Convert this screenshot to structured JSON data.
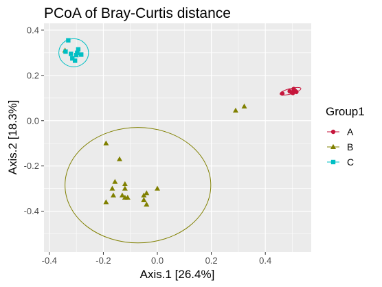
{
  "chart_data": {
    "type": "scatter",
    "title": "PCoA of Bray-Curtis distance",
    "xlabel": "Axis.1   [26.4%]",
    "ylabel": "Axis.2   [18.3%]",
    "xlim": [
      -0.42,
      0.57
    ],
    "ylim": [
      -0.58,
      0.43
    ],
    "x_ticks": [
      -0.4,
      -0.2,
      0.0,
      0.2,
      0.4
    ],
    "x_tick_labels": [
      "-0.4",
      "-0.2",
      "0.0",
      "0.2",
      "0.4"
    ],
    "y_ticks": [
      0.4,
      0.2,
      0.0,
      -0.2,
      -0.4
    ],
    "y_tick_labels": [
      "0.4",
      "0.2",
      "0.0",
      "-0.2",
      "-0.4"
    ],
    "grid": true,
    "legend": {
      "title": "Group1",
      "position": "right"
    },
    "series": [
      {
        "name": "A",
        "color": "#c6163c",
        "shape": "circle",
        "points": [
          [
            0.463,
            0.12
          ],
          [
            0.49,
            0.13
          ],
          [
            0.498,
            0.125
          ],
          [
            0.505,
            0.14
          ],
          [
            0.51,
            0.132
          ],
          [
            0.515,
            0.127
          ],
          [
            0.502,
            0.122
          ]
        ],
        "ellipse": {
          "cx": 0.493,
          "cy": 0.13,
          "rx": 0.04,
          "ry": 0.012,
          "angle": 15
        }
      },
      {
        "name": "B",
        "color": "#808000",
        "shape": "triangle",
        "points": [
          [
            -0.342,
            0.31
          ],
          [
            -0.19,
            -0.1
          ],
          [
            -0.157,
            -0.27
          ],
          [
            -0.14,
            -0.17
          ],
          [
            -0.167,
            -0.3
          ],
          [
            -0.163,
            -0.33
          ],
          [
            -0.12,
            -0.3
          ],
          [
            -0.13,
            -0.33
          ],
          [
            -0.12,
            -0.34
          ],
          [
            -0.12,
            -0.28
          ],
          [
            -0.19,
            -0.36
          ],
          [
            -0.11,
            -0.34
          ],
          [
            -0.05,
            -0.33
          ],
          [
            -0.04,
            -0.32
          ],
          [
            -0.05,
            -0.35
          ],
          [
            -0.04,
            -0.37
          ],
          [
            0.0,
            -0.3
          ],
          [
            0.29,
            0.045
          ],
          [
            0.322,
            0.063
          ]
        ],
        "ellipse": {
          "cx": -0.072,
          "cy": -0.285,
          "rx": 0.27,
          "ry": 0.255,
          "angle": 0
        }
      },
      {
        "name": "C",
        "color": "#00bfc4",
        "shape": "square",
        "points": [
          [
            -0.33,
            0.355
          ],
          [
            -0.34,
            0.305
          ],
          [
            -0.32,
            0.295
          ],
          [
            -0.297,
            0.3
          ],
          [
            -0.315,
            0.275
          ],
          [
            -0.305,
            0.265
          ],
          [
            -0.293,
            0.315
          ],
          [
            -0.282,
            0.292
          ],
          [
            -0.3,
            0.29
          ]
        ],
        "ellipse": {
          "cx": -0.31,
          "cy": 0.3,
          "rx": 0.055,
          "ry": 0.062,
          "angle": 0
        }
      }
    ]
  }
}
